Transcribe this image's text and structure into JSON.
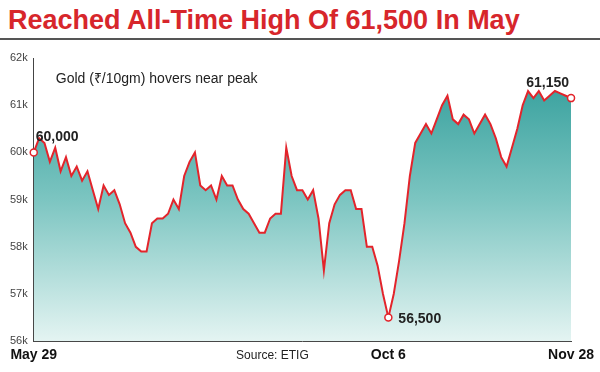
{
  "chart_data": {
    "type": "line",
    "title": "Reached All-Time High Of 61,500 In May",
    "subtitle": "Gold (₹/10gm) hovers near peak",
    "source": "Source: ETIG",
    "categories": [
      "May 29",
      null,
      null,
      null,
      null,
      null,
      null,
      null,
      null,
      null,
      null,
      null,
      null,
      null,
      null,
      null,
      null,
      null,
      null,
      null,
      null,
      null,
      null,
      null,
      null,
      null,
      null,
      null,
      null,
      null,
      null,
      null,
      null,
      null,
      null,
      null,
      null,
      null,
      null,
      null,
      null,
      null,
      null,
      null,
      null,
      null,
      null,
      null,
      null,
      null,
      null,
      null,
      null,
      null,
      null,
      null,
      null,
      null,
      null,
      null,
      null,
      null,
      null,
      null,
      null,
      null,
      "Oct 6",
      null,
      null,
      null,
      null,
      null,
      null,
      null,
      null,
      null,
      null,
      null,
      null,
      null,
      null,
      null,
      null,
      null,
      null,
      null,
      null,
      null,
      null,
      null,
      null,
      null,
      null,
      null,
      null,
      null,
      null,
      null,
      null,
      null,
      "Nov 28"
    ],
    "values": [
      60000,
      60300,
      60200,
      59800,
      60100,
      59600,
      59900,
      59500,
      59700,
      59400,
      59600,
      59200,
      58800,
      59300,
      59100,
      59200,
      58900,
      58500,
      58300,
      58000,
      57900,
      57900,
      58500,
      58600,
      58600,
      58700,
      59000,
      58800,
      59500,
      59800,
      60000,
      59300,
      59200,
      59300,
      59000,
      59500,
      59300,
      59300,
      59000,
      58800,
      58700,
      58500,
      58300,
      58300,
      58600,
      58700,
      58700,
      60100,
      59500,
      59200,
      59200,
      59000,
      59200,
      58600,
      57500,
      58500,
      58900,
      59100,
      59200,
      59200,
      58800,
      58800,
      58000,
      58000,
      57600,
      57000,
      56500,
      57000,
      57700,
      58500,
      59500,
      60200,
      60400,
      60600,
      60400,
      60700,
      61000,
      61200,
      60700,
      60600,
      60800,
      60700,
      60400,
      60600,
      60800,
      60600,
      60300,
      59900,
      59700,
      60100,
      60500,
      61000,
      61300,
      61150,
      61300,
      61100,
      61200,
      61300,
      61250,
      61200,
      61150
    ],
    "color": "#e3242b",
    "ylim": [
      56000,
      62000
    ],
    "yticks": [
      {
        "value": 56000,
        "label": "56k"
      },
      {
        "value": 57000,
        "label": "57k"
      },
      {
        "value": 58000,
        "label": "58k"
      },
      {
        "value": 59000,
        "label": "59k"
      },
      {
        "value": 60000,
        "label": "60k"
      },
      {
        "value": 61000,
        "label": "61k"
      },
      {
        "value": 62000,
        "label": "62k"
      }
    ],
    "grid": false,
    "annotations": [
      {
        "category": "May 29",
        "value": 60000,
        "text": "60,000"
      },
      {
        "category": "Oct 6",
        "value": 56500,
        "text": "56,500"
      },
      {
        "category": "Nov 28",
        "value": 61150,
        "text": "61,150"
      }
    ]
  }
}
